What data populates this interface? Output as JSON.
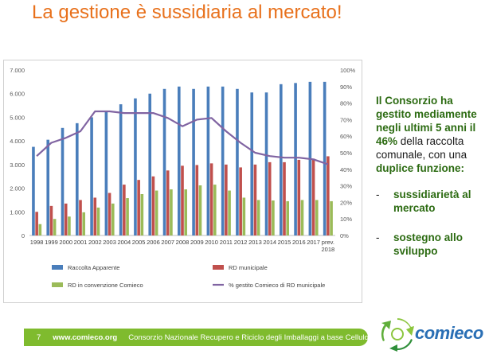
{
  "slide": {
    "title": "La gestione è sussidiaria al mercato!",
    "side_text": {
      "p1": "Il Consorzio ha gestito mediamente negli ultimi 5 anni il",
      "p2": "46%",
      "p3": " della raccolta comunale, con una",
      "p4": "duplice funzione:",
      "bullets": [
        "sussidiarietà al mercato",
        "sostegno allo sviluppo"
      ]
    },
    "footer": {
      "page": "7",
      "url": "www.comieco.org",
      "org": "Consorzio Nazionale Recupero e Riciclo degli Imballaggi a base Cellulosica"
    },
    "logo_text": "comieco",
    "colors": {
      "title": "#e8711c",
      "accent_green": "#2c6b12",
      "footer_green": "#7fbb2e",
      "logo_blue": "#2a6fb5"
    }
  },
  "chart_data": {
    "type": "bar",
    "categories": [
      "1998",
      "1999",
      "2000",
      "2001",
      "2002",
      "2003",
      "2004",
      "2005",
      "2006",
      "2007",
      "2008",
      "2009",
      "2010",
      "2011",
      "2012",
      "2013",
      "2014",
      "2015",
      "2016",
      "2017",
      "prev. 2018"
    ],
    "y_left": {
      "ylim": [
        0,
        7000
      ],
      "ticks": [
        "0",
        "1.000",
        "2.000",
        "3.000",
        "4.000",
        "5.000",
        "6.000",
        "7.000"
      ]
    },
    "y_right": {
      "ylim": [
        0,
        100
      ],
      "ticks": [
        "0%",
        "10%",
        "20%",
        "30%",
        "40%",
        "50%",
        "60%",
        "70%",
        "80%",
        "90%",
        "100%"
      ]
    },
    "grid": false,
    "legend_position": "bottom",
    "series": [
      {
        "name": "Raccolta Apparente",
        "type": "bar",
        "axis": "left",
        "color": "#4a7ebb",
        "values": [
          3750,
          4050,
          4550,
          4750,
          5000,
          5250,
          5550,
          5800,
          6000,
          6200,
          6300,
          6200,
          6300,
          6300,
          6200,
          6050,
          6050,
          6400,
          6450,
          6500,
          6500
        ]
      },
      {
        "name": "RD municipale",
        "type": "bar",
        "axis": "left",
        "color": "#c0504d",
        "values": [
          1000,
          1250,
          1350,
          1500,
          1600,
          1800,
          2150,
          2350,
          2500,
          2750,
          2950,
          2980,
          3050,
          3000,
          2880,
          3000,
          3100,
          3100,
          3200,
          3250,
          3350
        ]
      },
      {
        "name": "RD in convenzione Comieco",
        "type": "bar",
        "axis": "left",
        "color": "#9bbb59",
        "values": [
          480,
          700,
          800,
          980,
          1180,
          1350,
          1580,
          1750,
          1900,
          1950,
          1950,
          2120,
          2150,
          1900,
          1600,
          1500,
          1480,
          1450,
          1500,
          1500,
          1450
        ]
      },
      {
        "name": "% gestito Comieco di RD municipale",
        "type": "line",
        "axis": "right",
        "color": "#8064a2",
        "values": [
          48,
          56,
          59,
          63,
          75,
          75,
          74,
          74,
          74,
          71,
          66,
          70,
          71,
          63,
          56,
          50,
          48,
          47,
          47,
          46,
          43
        ]
      }
    ]
  }
}
